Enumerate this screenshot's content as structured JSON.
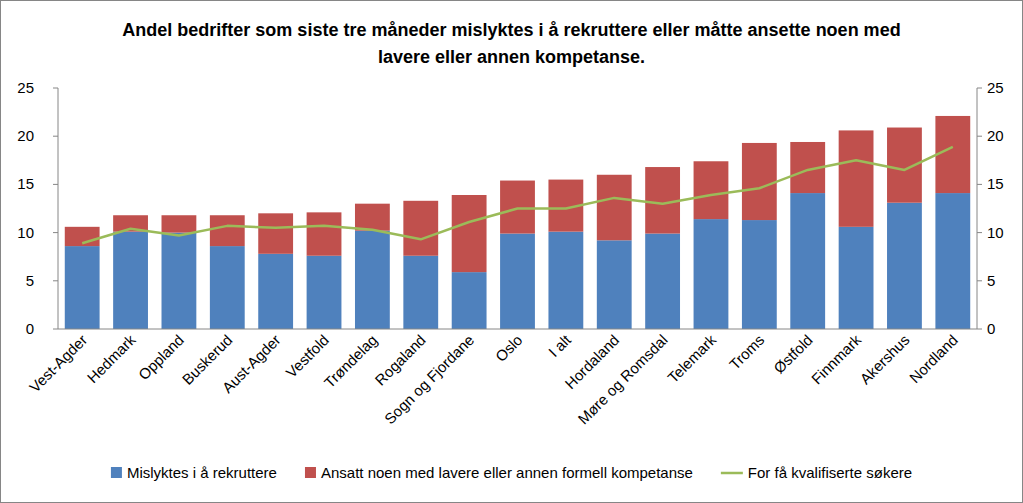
{
  "chart_data": {
    "type": "bar",
    "title": "Andel bedrifter som siste tre måneder mislyktes i å rekruttere eller måtte ansette noen med lavere eller annen kompetanse.",
    "categories": [
      "Vest-Agder",
      "Hedmark",
      "Oppland",
      "Buskerud",
      "Aust-Agder",
      "Vestfold",
      "Trøndelag",
      "Rogaland",
      "Sogn og Fjordane",
      "Oslo",
      "I alt",
      "Hordaland",
      "Møre og Romsdal",
      "Telemark",
      "Troms",
      "Østfold",
      "Finnmark",
      "Akershus",
      "Nordland"
    ],
    "stacked": true,
    "series": [
      {
        "name": "Mislyktes i å rekruttere",
        "color": "#4f81bd",
        "values": [
          8.6,
          10.1,
          10.0,
          8.6,
          7.8,
          7.6,
          10.2,
          7.6,
          5.9,
          9.9,
          10.1,
          9.2,
          9.9,
          11.4,
          11.3,
          14.1,
          10.6,
          13.1,
          14.1
        ]
      },
      {
        "name": "Ansatt noen med lavere eller annen formell kompetanse",
        "color": "#c0504d",
        "values": [
          2.0,
          1.7,
          1.8,
          3.2,
          4.2,
          4.5,
          2.8,
          5.7,
          8.0,
          5.5,
          5.4,
          6.8,
          6.9,
          6.0,
          8.0,
          5.3,
          10.0,
          7.8,
          8.0
        ]
      },
      {
        "name": "For få kvalifiserte søkere",
        "type": "line",
        "color": "#9bbb59",
        "axis": "y2",
        "values": [
          8.9,
          10.4,
          9.7,
          10.7,
          10.5,
          10.7,
          10.3,
          9.3,
          11.1,
          12.5,
          12.5,
          13.6,
          13.0,
          13.9,
          14.6,
          16.5,
          17.5,
          16.5,
          18.9
        ]
      }
    ],
    "ylim": [
      0,
      25
    ],
    "yticks": [
      0,
      5,
      10,
      15,
      20,
      25
    ],
    "y2lim": [
      0,
      25
    ],
    "y2ticks": [
      0,
      5,
      10,
      15,
      20,
      25
    ],
    "grid": false,
    "legend": "bottom"
  }
}
